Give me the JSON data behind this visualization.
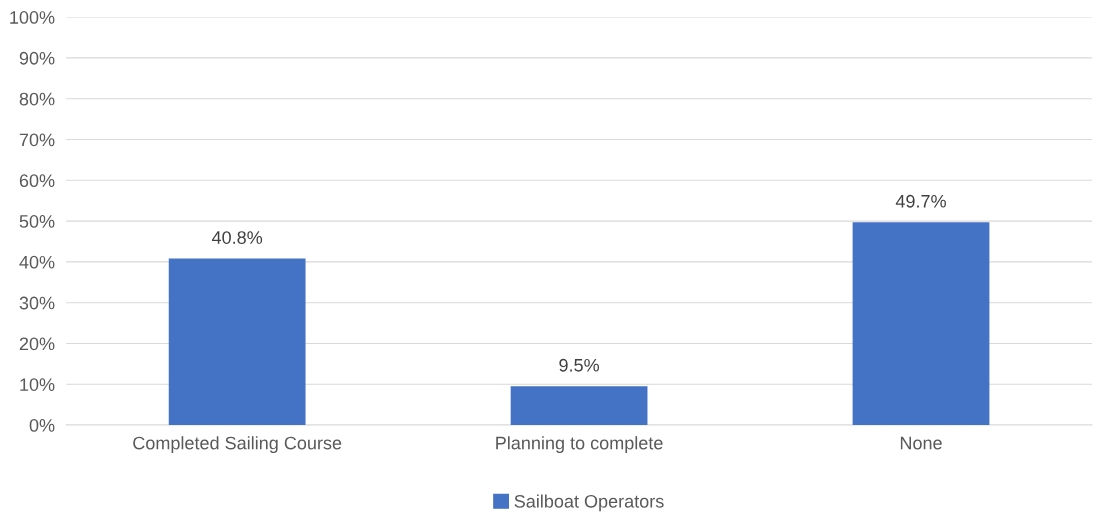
{
  "chart_data": {
    "type": "bar",
    "categories": [
      "Completed Sailing Course",
      "Planning to complete",
      "None"
    ],
    "series": [
      {
        "name": "Sailboat Operators",
        "color": "#4472c4",
        "values": [
          40.8,
          9.5,
          49.7
        ],
        "value_labels": [
          "40.8%",
          "9.5%",
          "49.7%"
        ]
      }
    ],
    "ylim": [
      0,
      100
    ],
    "yticks": [
      {
        "value": 0,
        "label": "0%"
      },
      {
        "value": 10,
        "label": "10%"
      },
      {
        "value": 20,
        "label": "20%"
      },
      {
        "value": 30,
        "label": "30%"
      },
      {
        "value": 40,
        "label": "40%"
      },
      {
        "value": 50,
        "label": "50%"
      },
      {
        "value": 60,
        "label": "60%"
      },
      {
        "value": 70,
        "label": "70%"
      },
      {
        "value": 80,
        "label": "80%"
      },
      {
        "value": 90,
        "label": "90%"
      },
      {
        "value": 100,
        "label": "100%"
      }
    ],
    "grid": "y",
    "legend": "bottom"
  }
}
